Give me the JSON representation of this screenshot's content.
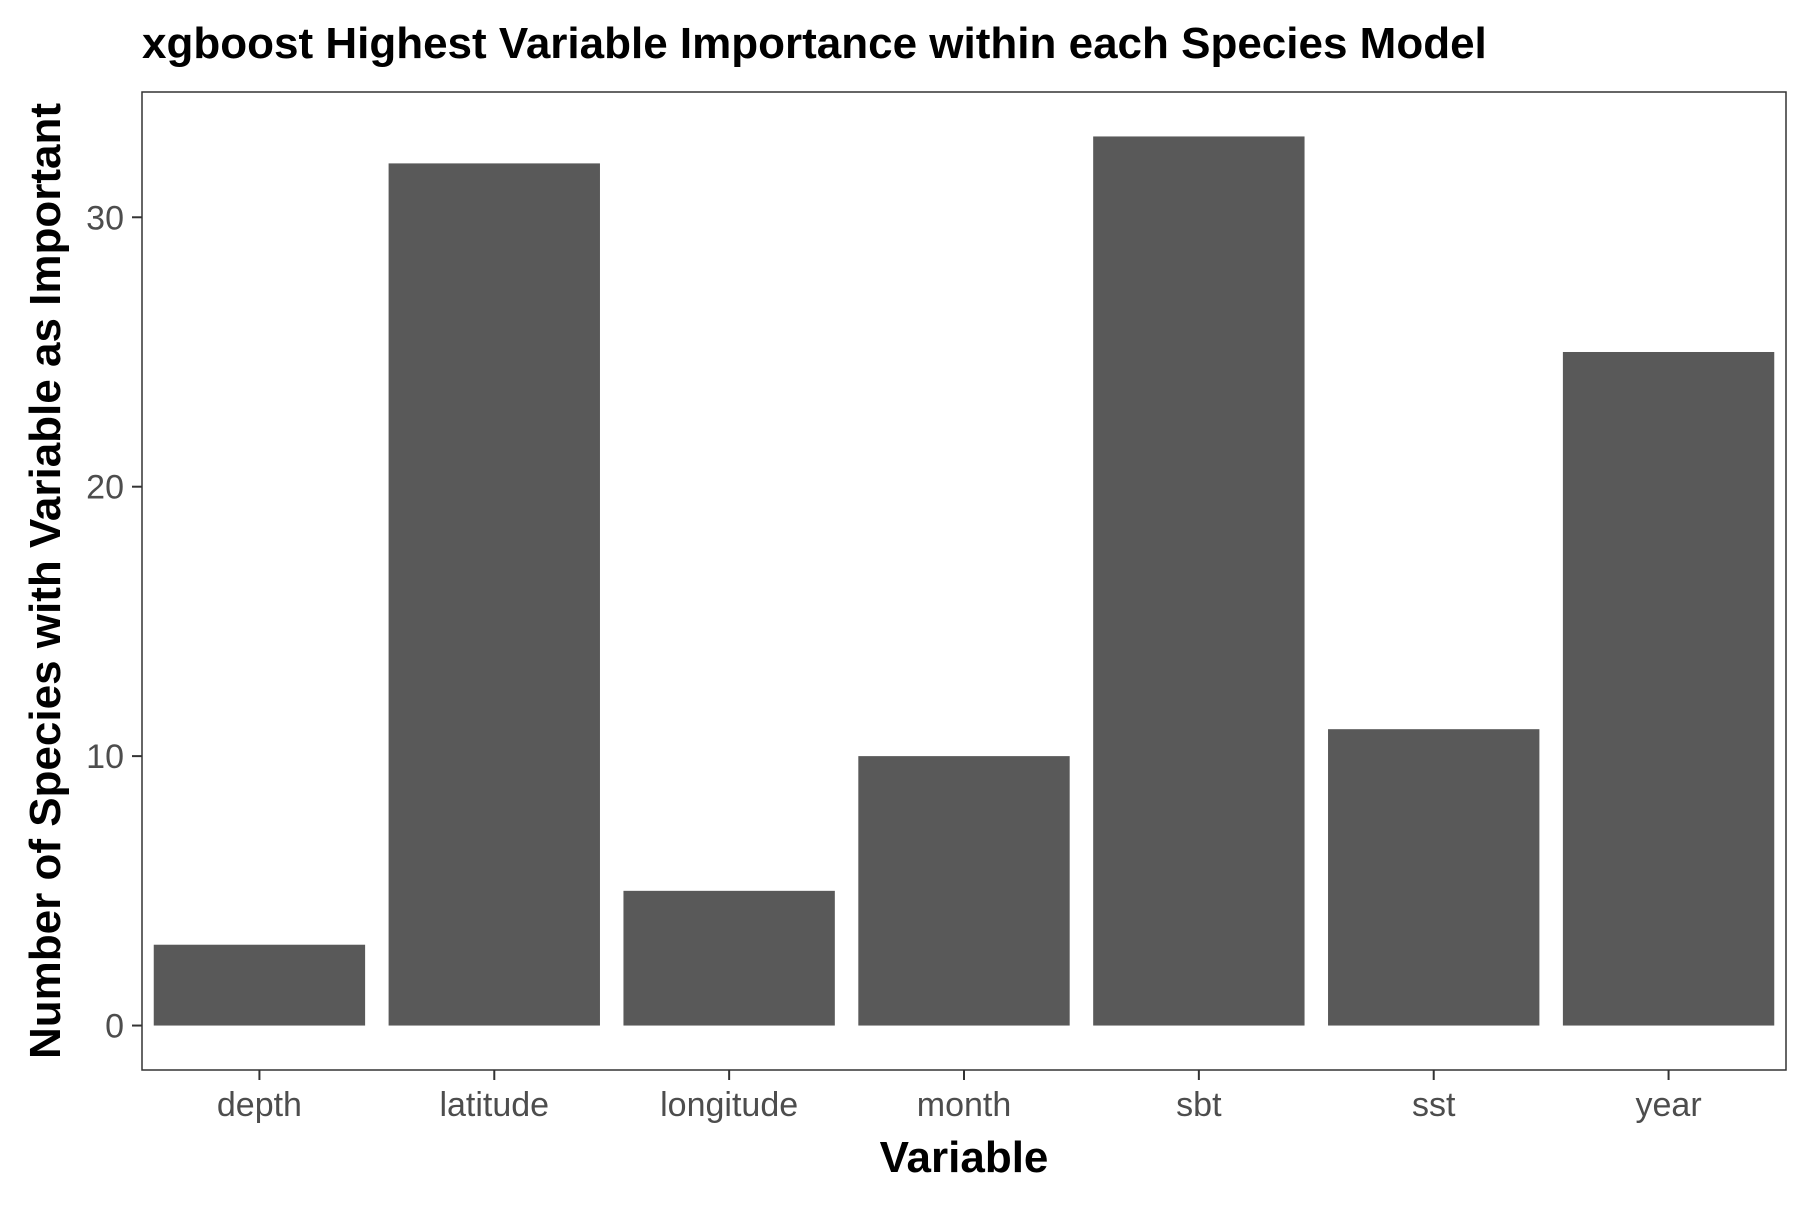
{
  "chart_data": {
    "type": "bar",
    "title": "xgboost Highest Variable Importance within each Species Model",
    "xlabel": "Variable",
    "ylabel": "Number of Species with Variable as Important",
    "categories": [
      "depth",
      "latitude",
      "longitude",
      "month",
      "sbt",
      "sst",
      "year"
    ],
    "values": [
      3,
      32,
      5,
      10,
      33,
      11,
      25
    ],
    "yticks": [
      0,
      10,
      20,
      30
    ],
    "ylim": [
      -1.65,
      34.65
    ],
    "grid": false,
    "legend": "none",
    "bar_color": "#595959"
  }
}
